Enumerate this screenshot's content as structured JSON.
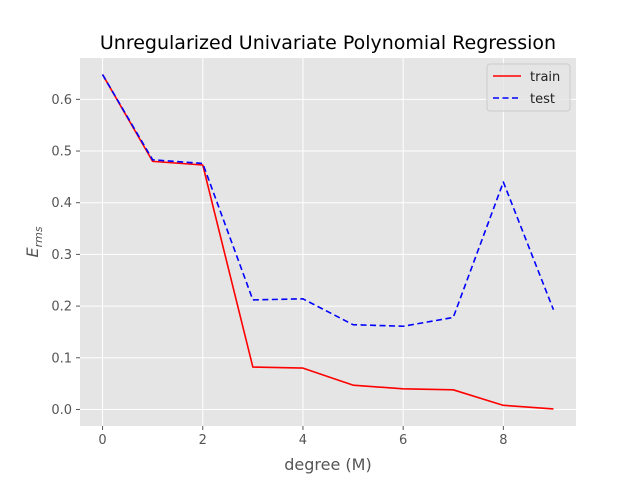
{
  "chart_data": {
    "type": "line",
    "title": "Unregularized Univariate Polynomial Regression",
    "xlabel": "degree (M)",
    "ylabel_main": "E",
    "ylabel_sub": "rms",
    "x": [
      0,
      1,
      2,
      3,
      4,
      5,
      6,
      7,
      8,
      9
    ],
    "xlim": [
      -0.45,
      9.45
    ],
    "ylim": [
      -0.032,
      0.68
    ],
    "xticks": [
      0,
      2,
      4,
      6,
      8
    ],
    "yticks": [
      0.0,
      0.1,
      0.2,
      0.3,
      0.4,
      0.5,
      0.6
    ],
    "xtick_labels": [
      "0",
      "2",
      "4",
      "6",
      "8"
    ],
    "ytick_labels": [
      "0.0",
      "0.1",
      "0.2",
      "0.3",
      "0.4",
      "0.5",
      "0.6"
    ],
    "grid": true,
    "legend_position": "top-right",
    "series": [
      {
        "name": "train",
        "color": "#ff0000",
        "style": "solid",
        "values": [
          0.648,
          0.48,
          0.473,
          0.082,
          0.08,
          0.047,
          0.04,
          0.038,
          0.008,
          0.001
        ]
      },
      {
        "name": "test",
        "color": "#0000ff",
        "style": "dashed",
        "values": [
          0.648,
          0.483,
          0.476,
          0.212,
          0.214,
          0.164,
          0.161,
          0.178,
          0.44,
          0.193
        ]
      }
    ]
  }
}
